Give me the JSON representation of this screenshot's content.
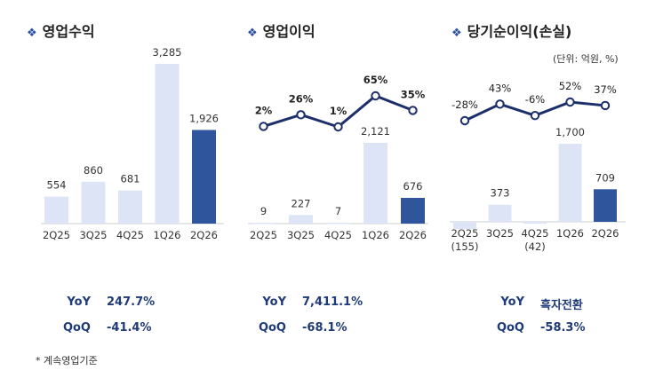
{
  "charts": [
    {
      "title": "영업수익",
      "unit": "",
      "stats": [
        {
          "label": "YoY",
          "value": "247.7%"
        },
        {
          "label": "QoQ",
          "value": "-41.4%"
        }
      ]
    },
    {
      "title": "영업이익",
      "unit": "",
      "stats": [
        {
          "label": "YoY",
          "value": "7,411.1%"
        },
        {
          "label": "QoQ",
          "value": "-68.1%"
        }
      ]
    },
    {
      "title": "당기순이익(손실)",
      "unit": "(단위: 억원, %)",
      "stats": [
        {
          "label": "YoY",
          "value": "흑자전환"
        },
        {
          "label": "QoQ",
          "value": "-58.3%"
        }
      ]
    }
  ],
  "footnote": "*  계속영업기준",
  "colors": {
    "light_bar": "#dce4f5",
    "highlight_bar": "#2f559c",
    "line": "#1c2f6b",
    "title_mark": "#2b4fa0",
    "stats_text": "#1f3a78"
  },
  "chart_data": [
    {
      "type": "bar",
      "title": "영업수익",
      "categories": [
        "2Q25",
        "3Q25",
        "4Q25",
        "1Q26",
        "2Q26"
      ],
      "series": [
        {
          "values": [
            554,
            860,
            681,
            3285,
            1926
          ],
          "labels": [
            "554",
            "860",
            "681",
            "3,285",
            "1,926"
          ]
        }
      ],
      "highlight_index": 4
    },
    {
      "type": "bar",
      "title": "영업이익",
      "categories": [
        "2Q25",
        "3Q25",
        "4Q25",
        "1Q26",
        "2Q26"
      ],
      "series": [
        {
          "values": [
            9,
            227,
            7,
            2121,
            676
          ],
          "labels": [
            "9",
            "227",
            "7",
            "2,121",
            "676"
          ]
        },
        {
          "values": [
            2,
            26,
            1,
            65,
            35
          ],
          "labels": [
            "2%",
            "26%",
            "1%",
            "65%",
            "35%"
          ]
        }
      ],
      "highlight_index": 4
    },
    {
      "type": "bar",
      "title": "당기순이익(손실)",
      "categories": [
        "2Q25",
        "3Q25",
        "4Q25",
        "1Q26",
        "2Q26"
      ],
      "sub_categories": [
        "(155)",
        "",
        "(42)",
        "",
        ""
      ],
      "series": [
        {
          "values": [
            -155,
            373,
            -42,
            1700,
            709
          ],
          "labels": [
            "",
            "373",
            "",
            "1,700",
            "709"
          ]
        },
        {
          "values": [
            -28,
            43,
            -6,
            52,
            37
          ],
          "labels": [
            "-28%",
            "43%",
            "-6%",
            "52%",
            "37%"
          ]
        }
      ],
      "highlight_index": 4
    }
  ]
}
